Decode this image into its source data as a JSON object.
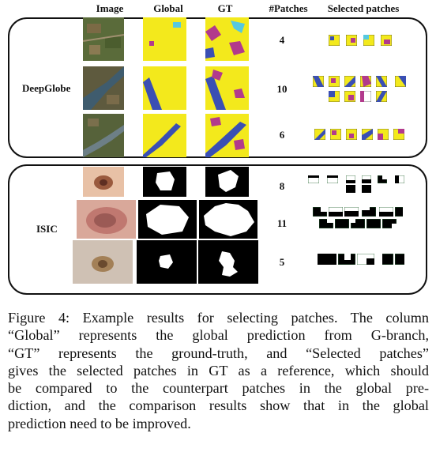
{
  "headers": {
    "image": "Image",
    "global": "Global",
    "gt": "GT",
    "patches": "#Patches",
    "selected": "Selected patches"
  },
  "groups": {
    "deepglobe": "DeepGlobe",
    "isic": "ISIC"
  },
  "rows": [
    {
      "patches": "4"
    },
    {
      "patches": "10"
    },
    {
      "patches": "6"
    },
    {
      "patches": "8"
    },
    {
      "patches": "11"
    },
    {
      "patches": "5"
    }
  ],
  "caption": {
    "lines": [
      "Figure 4: Example results for selecting patches. The column",
      "“Global” represents the global prediction from G-branch,",
      "“GT” represents the ground-truth, and “Selected patches”",
      "gives the selected patches in GT as a reference, which should",
      "be compared to the counterpart patches in the global pre-",
      "diction, and the comparison results show that in the global",
      "prediction need to be improved."
    ]
  },
  "colors": {
    "yellow": "#f3e91c",
    "blue": "#3a4fb3",
    "magenta": "#b23a8c",
    "cyan": "#55c8e0",
    "green": "#3b5e2a"
  }
}
